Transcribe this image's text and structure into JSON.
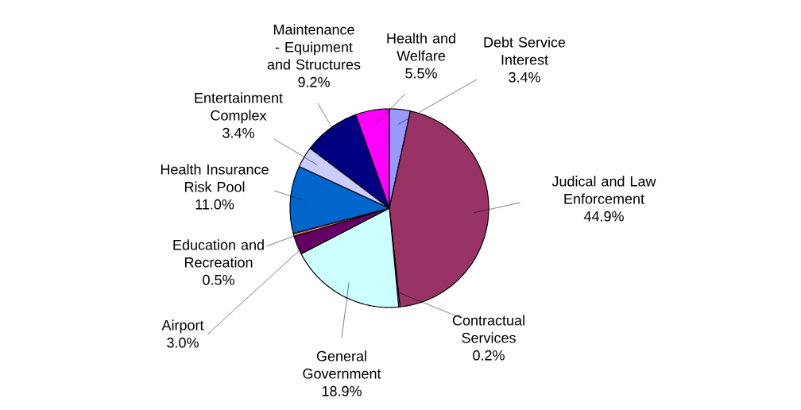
{
  "chart_data": {
    "type": "pie",
    "categories": [
      "Debt Service Interest",
      "Judical and Law Enforcement",
      "Contractual Services",
      "General Government",
      "Airport",
      "Education and Recreation",
      "Health Insurance Risk Pool",
      "Entertainment Complex",
      "Maintenance - Equipment and Structures",
      "Health and Welfare"
    ],
    "values": [
      3.4,
      44.9,
      0.2,
      18.9,
      3.0,
      0.5,
      11.0,
      3.4,
      9.2,
      5.5
    ],
    "value_labels": [
      "3.4%",
      "44.9%",
      "0.2%",
      "18.9%",
      "3.0%",
      "0.5%",
      "11.0%",
      "3.4%",
      "9.2%",
      "5.5%"
    ],
    "colors": [
      "#9999ff",
      "#993366",
      "#ffffcc",
      "#ccffff",
      "#660066",
      "#ff8080",
      "#0066cc",
      "#ccccff",
      "#000080",
      "#ff00ff"
    ]
  }
}
